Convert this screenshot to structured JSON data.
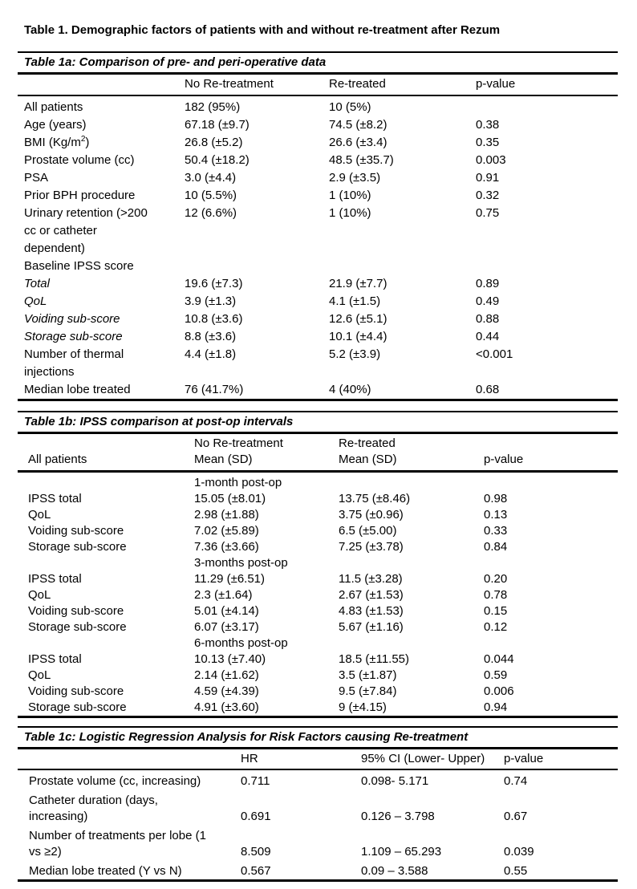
{
  "page": {
    "title": "Table 1. Demographic factors of patients with and without re-treatment after Rezum"
  },
  "table_1a": {
    "title": "Table 1a: Comparison of pre- and peri-operative data",
    "columns": [
      "",
      "No Re-treatment",
      "Re-treated",
      "p-value"
    ],
    "rows": [
      {
        "cells": [
          {
            "t": "All patients"
          },
          {
            "t": "182 (95%)"
          },
          {
            "t": "10 (5%)"
          },
          {
            "t": ""
          }
        ]
      },
      {
        "cells": [
          {
            "t": "Age (years)"
          },
          {
            "t": "67.18 (±9.7)"
          },
          {
            "t": "74.5 (±8.2)"
          },
          {
            "t": "0.38"
          }
        ]
      },
      {
        "cells": [
          {
            "t": "BMI (Kg/m",
            "sup": "2",
            "end": ")"
          },
          {
            "t": "26.8 (±5.2)"
          },
          {
            "t": "26.6 (±3.4)"
          },
          {
            "t": "0.35"
          }
        ]
      },
      {
        "cells": [
          {
            "t": "Prostate volume (cc)"
          },
          {
            "t": "50.4 (±18.2)"
          },
          {
            "t": "48.5 (±35.7)"
          },
          {
            "t": "0.003",
            "bold": true
          }
        ]
      },
      {
        "cells": [
          {
            "t": "PSA"
          },
          {
            "t": "3.0 (±4.4)"
          },
          {
            "t": "2.9 (±3.5)"
          },
          {
            "t": "0.91"
          }
        ]
      },
      {
        "cells": [
          {
            "t": "Prior BPH procedure"
          },
          {
            "t": "10 (5.5%)"
          },
          {
            "t": "1 (10%)"
          },
          {
            "t": "0.32"
          }
        ]
      },
      {
        "cells": [
          {
            "lines": [
              "Urinary retention (>200",
              "cc or catheter",
              "dependent)"
            ]
          },
          {
            "t": "12 (6.6%)"
          },
          {
            "t": "1 (10%)"
          },
          {
            "t": "0.75"
          }
        ]
      },
      {
        "cells": [
          {
            "t": "Baseline IPSS score"
          },
          {
            "t": ""
          },
          {
            "t": ""
          },
          {
            "t": ""
          }
        ]
      },
      {
        "cells": [
          {
            "t": "Total",
            "italic": true
          },
          {
            "t": "19.6 (±7.3)"
          },
          {
            "t": "21.9 (±7.7)"
          },
          {
            "t": "0.89"
          }
        ]
      },
      {
        "cells": [
          {
            "t": "QoL",
            "italic": true
          },
          {
            "t": "3.9 (±1.3)"
          },
          {
            "t": "4.1 (±1.5)"
          },
          {
            "t": "0.49"
          }
        ]
      },
      {
        "cells": [
          {
            "t": "Voiding sub-score",
            "italic": true
          },
          {
            "t": "10.8 (±3.6)"
          },
          {
            "t": "12.6 (±5.1)"
          },
          {
            "t": "0.88"
          }
        ]
      },
      {
        "cells": [
          {
            "t": "Storage sub-score",
            "italic": true
          },
          {
            "t": "8.8 (±3.6)"
          },
          {
            "t": "10.1 (±4.4)"
          },
          {
            "t": "0.44"
          }
        ]
      },
      {
        "cells": [
          {
            "lines": [
              "Number of thermal",
              "injections"
            ]
          },
          {
            "t": "4.4 (±1.8)"
          },
          {
            "t": "5.2 (±3.9)"
          },
          {
            "t": "<0.001",
            "bold": true
          }
        ]
      },
      {
        "cells": [
          {
            "t": "Median lobe treated"
          },
          {
            "t": "76 (41.7%)"
          },
          {
            "t": "4 (40%)"
          },
          {
            "t": "0.68"
          }
        ]
      }
    ]
  },
  "table_1b": {
    "title": "Table 1b: IPSS comparison at post-op intervals",
    "header_row1": [
      "",
      "No Re-treatment",
      "Re-treated",
      ""
    ],
    "header_row2": [
      "All patients",
      "Mean (SD)",
      "Mean (SD)",
      "p-value"
    ],
    "sections": [
      {
        "label": "1-month post-op",
        "rows": [
          {
            "cells": [
              {
                "t": "IPSS total"
              },
              {
                "t": "15.05 (±8.01)"
              },
              {
                "t": "13.75 (±8.46)"
              },
              {
                "t": "0.98"
              }
            ]
          },
          {
            "cells": [
              {
                "t": "QoL"
              },
              {
                "t": "2.98 (±1.88)"
              },
              {
                "t": "3.75 (±0.96)"
              },
              {
                "t": "0.13"
              }
            ]
          },
          {
            "cells": [
              {
                "t": "Voiding sub-score"
              },
              {
                "t": "7.02 (±5.89)"
              },
              {
                "t": "6.5 (±5.00)"
              },
              {
                "t": "0.33"
              }
            ]
          },
          {
            "cells": [
              {
                "t": "Storage sub-score"
              },
              {
                "t": "7.36 (±3.66)"
              },
              {
                "t": "7.25 (±3.78)"
              },
              {
                "t": "0.84"
              }
            ]
          }
        ]
      },
      {
        "label": "3-months post-op",
        "rows": [
          {
            "cells": [
              {
                "t": "IPSS total"
              },
              {
                "t": "11.29 (±6.51)"
              },
              {
                "t": "11.5 (±3.28)"
              },
              {
                "t": "0.20"
              }
            ]
          },
          {
            "cells": [
              {
                "t": "QoL"
              },
              {
                "t": "2.3 (±1.64)"
              },
              {
                "t": "2.67 (±1.53)"
              },
              {
                "t": "0.78"
              }
            ]
          },
          {
            "cells": [
              {
                "t": "Voiding sub-score"
              },
              {
                "t": "5.01 (±4.14)"
              },
              {
                "t": "4.83 (±1.53)"
              },
              {
                "t": "0.15"
              }
            ]
          },
          {
            "cells": [
              {
                "t": "Storage sub-score"
              },
              {
                "t": "6.07 (±3.17)"
              },
              {
                "t": "5.67 (±1.16)"
              },
              {
                "t": "0.12"
              }
            ]
          }
        ]
      },
      {
        "label": "6-months post-op",
        "rows": [
          {
            "cells": [
              {
                "t": "IPSS total"
              },
              {
                "t": "10.13 (±7.40)"
              },
              {
                "t": "18.5 (±11.55)"
              },
              {
                "t": "0.044",
                "bold": true
              }
            ]
          },
          {
            "cells": [
              {
                "t": "QoL"
              },
              {
                "t": "2.14 (±1.62)"
              },
              {
                "t": "3.5 (±1.87)"
              },
              {
                "t": "0.59"
              }
            ]
          },
          {
            "cells": [
              {
                "t": "Voiding sub-score"
              },
              {
                "t": "4.59 (±4.39)"
              },
              {
                "t": "9.5 (±7.84)"
              },
              {
                "t": "0.006",
                "bold": true
              }
            ]
          },
          {
            "cells": [
              {
                "t": "Storage sub-score"
              },
              {
                "t": "4.91 (±3.60)"
              },
              {
                "t": "9 (±4.15)"
              },
              {
                "t": "0.94"
              }
            ]
          }
        ]
      }
    ]
  },
  "table_1c": {
    "title": "Table 1c: Logistic Regression Analysis for Risk Factors causing Re-treatment",
    "columns": [
      "",
      "HR",
      "95% CI (Lower- Upper)",
      "p-value"
    ],
    "rows": [
      {
        "cells": [
          {
            "t": "Prostate volume (cc, increasing)"
          },
          {
            "t": "0.711"
          },
          {
            "t": "0.098- 5.171"
          },
          {
            "t": "0.74"
          }
        ]
      },
      {
        "cells": [
          {
            "lines": [
              "Catheter duration (days,",
              "increasing)"
            ]
          },
          {
            "t": "0.691"
          },
          {
            "t": "0.126 – 3.798"
          },
          {
            "t": "0.67"
          }
        ]
      },
      {
        "cells": [
          {
            "lines": [
              "Number of treatments per lobe (1",
              "vs ≥2)"
            ]
          },
          {
            "t": "8.509"
          },
          {
            "t": "1.109 – 65.293"
          },
          {
            "t": "0.039",
            "bold": true
          }
        ]
      },
      {
        "cells": [
          {
            "t": "Median lobe treated (Y vs N)"
          },
          {
            "t": "0.567"
          },
          {
            "t": "0.09 – 3.588"
          },
          {
            "t": "0.55"
          }
        ]
      }
    ]
  }
}
